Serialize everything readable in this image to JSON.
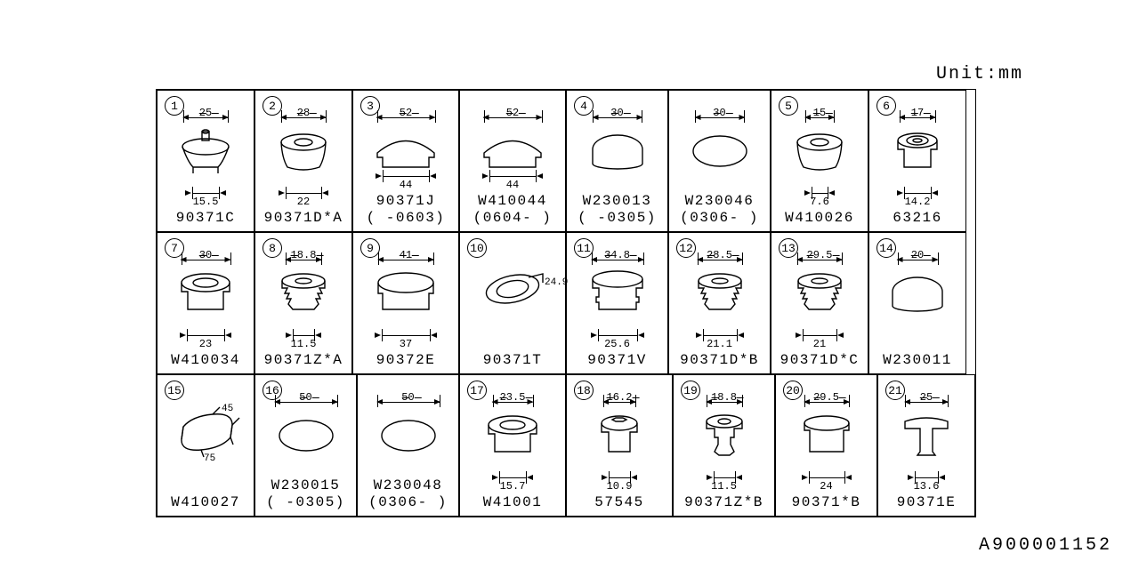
{
  "unit_label": "Unit:mm",
  "ref": "A900001152",
  "stroke": "#000000",
  "background": "#ffffff",
  "line_width": 1.4,
  "font_family": "Courier New",
  "rows": [
    {
      "cells": [
        {
          "w": 110,
          "n": "1",
          "label": "90371C",
          "top": "25",
          "bot": "15.5",
          "topw": 50,
          "botw": 30,
          "botmode": "out",
          "shape": "plug-stem"
        },
        {
          "w": 110,
          "n": "2",
          "label": "90371D*A",
          "top": "28",
          "bot": "22",
          "topw": 50,
          "botw": 40,
          "botmode": "out",
          "shape": "plug-round"
        },
        {
          "w": 120,
          "n": "3",
          "label": "90371J\n( -0603)",
          "top": "52",
          "bot": "44",
          "topw": 65,
          "botw": 52,
          "botmode": "out",
          "shape": "dome"
        },
        {
          "w": 120,
          "label": "W410044\n(0604- )",
          "top": "52",
          "bot": "44",
          "topw": 65,
          "botw": 52,
          "botmode": "out",
          "shape": "dome"
        },
        {
          "w": 115,
          "n": "4",
          "label": "W230013\n( -0305)",
          "top": "30",
          "topw": 55,
          "shape": "ellipse-open"
        },
        {
          "w": 115,
          "label": "W230046\n(0306- )",
          "top": "30",
          "topw": 55,
          "shape": "ellipse"
        },
        {
          "w": 110,
          "n": "5",
          "label": "W410026",
          "top": "15",
          "bot": "7.6",
          "topw": 32,
          "botw": 18,
          "botmode": "out",
          "shape": "plug-round"
        },
        {
          "w": 110,
          "n": "6",
          "label": "63216",
          "top": "17",
          "bot": "14.2",
          "topw": 40,
          "botw": 30,
          "botmode": "out",
          "shape": "grommet-top"
        }
      ]
    },
    {
      "cells": [
        {
          "w": 110,
          "n": "7",
          "label": "W410034",
          "top": "30",
          "bot": "23",
          "topw": 55,
          "botw": 42,
          "botmode": "out",
          "shape": "grommet"
        },
        {
          "w": 110,
          "n": "8",
          "label": "90371Z*A",
          "top": "18.8",
          "bot": "11.5",
          "topw": 40,
          "botw": 24,
          "botmode": "out",
          "shape": "plug-ribbed"
        },
        {
          "w": 120,
          "n": "9",
          "label": "90372E",
          "top": "41",
          "bot": "37",
          "topw": 62,
          "botw": 54,
          "botmode": "out",
          "shape": "cap"
        },
        {
          "w": 120,
          "n": "10",
          "label": "90371T",
          "side": "24.9",
          "shape": "ellipse-iso"
        },
        {
          "w": 115,
          "n": "11",
          "label": "90371V",
          "top": "34.8",
          "bot": "25.6",
          "topw": 58,
          "botw": 44,
          "botmode": "out",
          "shape": "plug-step"
        },
        {
          "w": 115,
          "n": "12",
          "label": "90371D*B",
          "top": "28.5",
          "bot": "21.1",
          "topw": 50,
          "botw": 38,
          "botmode": "out",
          "shape": "plug-ribbed"
        },
        {
          "w": 110,
          "n": "13",
          "label": "90371D*C",
          "top": "29.5",
          "bot": "21",
          "topw": 50,
          "botw": 38,
          "botmode": "out",
          "shape": "plug-ribbed"
        },
        {
          "w": 110,
          "n": "14",
          "label": "W230011",
          "top": "20",
          "topw": 45,
          "shape": "ellipse-open"
        }
      ]
    },
    {
      "cells": [
        {
          "w": 110,
          "n": "15",
          "label": "W410027",
          "shape": "oblong",
          "d1": "45",
          "d2": "75"
        },
        {
          "w": 115,
          "n": "16",
          "label": "W230015\n( -0305)",
          "top": "50",
          "topw": 70,
          "shape": "ellipse"
        },
        {
          "w": 115,
          "label": "W230048\n(0306- )",
          "top": "50",
          "topw": 70,
          "shape": "ellipse"
        },
        {
          "w": 120,
          "n": "17",
          "label": "W41001",
          "top": "23.5",
          "bot": "15.7",
          "topw": 45,
          "botw": 30,
          "botmode": "out",
          "shape": "grommet"
        },
        {
          "w": 120,
          "n": "18",
          "label": "57545",
          "top": "16.2",
          "bot": "10.9",
          "topw": 36,
          "botw": 24,
          "botmode": "out",
          "shape": "grommet-hex"
        },
        {
          "w": 115,
          "n": "19",
          "label": "90371Z*B",
          "top": "18.8",
          "bot": "11.5",
          "topw": 40,
          "botw": 24,
          "botmode": "out",
          "shape": "plug-pin"
        },
        {
          "w": 115,
          "n": "20",
          "label": "90371*B",
          "top": "29.5",
          "bot": "24",
          "topw": 50,
          "botw": 40,
          "botmode": "out",
          "shape": "plug-flat"
        },
        {
          "w": 110,
          "n": "21",
          "label": "90371E",
          "top": "25",
          "bot": "13.6",
          "topw": 48,
          "botw": 26,
          "botmode": "out",
          "shape": "plug-tee"
        }
      ]
    }
  ]
}
